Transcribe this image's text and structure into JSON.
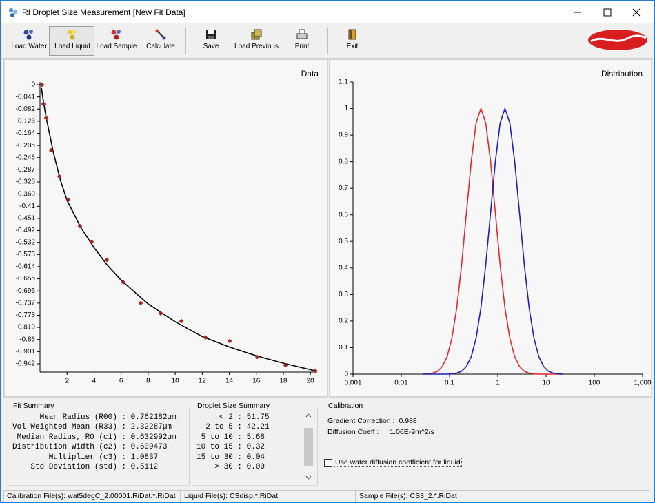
{
  "window": {
    "title": "RI Droplet Size Measurement [New Fit Data]"
  },
  "toolbar": {
    "buttons": [
      "Load Water",
      "Load Liquid",
      "Load Sample",
      "Calculate",
      "Save",
      "Load Previous",
      "Print",
      "Exit"
    ]
  },
  "chart_data": [
    {
      "type": "scatter",
      "title": "Data",
      "x": [
        0.15,
        0.26,
        0.46,
        0.82,
        1.43,
        2.09,
        2.96,
        3.82,
        4.95,
        6.17,
        7.45,
        8.93,
        10.46,
        12.24,
        14.03,
        16.07,
        18.15,
        20.35
      ],
      "values": [
        0,
        -0.065,
        -0.112,
        -0.221,
        -0.309,
        -0.388,
        -0.477,
        -0.53,
        -0.591,
        -0.667,
        -0.737,
        -0.772,
        -0.798,
        -0.853,
        -0.865,
        -0.919,
        -0.947,
        -0.965
      ],
      "color": "#b22222",
      "fit": {
        "x": [
          0.1,
          0.3,
          0.5,
          1,
          1.5,
          2,
          3,
          4,
          5,
          6,
          8,
          10,
          12,
          14,
          16,
          18,
          20.3
        ],
        "values": [
          -0.01,
          -0.07,
          -0.12,
          -0.23,
          -0.32,
          -0.39,
          -0.48,
          -0.55,
          -0.61,
          -0.66,
          -0.74,
          -0.8,
          -0.85,
          -0.885,
          -0.915,
          -0.94,
          -0.965
        ],
        "color": "#000000"
      },
      "xlim": [
        0,
        20.5
      ],
      "ylim": [
        -0.97,
        0
      ],
      "xticks": [
        2,
        4,
        6,
        8,
        10,
        12,
        14,
        16,
        18,
        20
      ],
      "yticks": [
        0,
        -0.041,
        -0.082,
        -0.123,
        -0.164,
        -0.205,
        -0.246,
        -0.287,
        -0.328,
        -0.369,
        -0.41,
        -0.451,
        -0.492,
        -0.532,
        -0.573,
        -0.614,
        -0.655,
        -0.696,
        -0.737,
        -0.778,
        -0.819,
        -0.86,
        -0.901,
        -0.942
      ]
    },
    {
      "type": "line",
      "title": "Distribution",
      "xscale": "log",
      "x": [
        0.0282,
        0.0355,
        0.0447,
        0.0562,
        0.0708,
        0.0891,
        0.112,
        0.141,
        0.178,
        0.224,
        0.282,
        0.355,
        0.447,
        0.562,
        0.708,
        0.891,
        1.12,
        1.41,
        1.78,
        2.24,
        2.82,
        3.55,
        4.47,
        5.62,
        7.08,
        8.91,
        11.2,
        14.1,
        17.8,
        22.4
      ],
      "series": [
        {
          "color": "#e0282e",
          "values": [
            0,
            0.001,
            0.004,
            0.011,
            0.029,
            0.066,
            0.135,
            0.249,
            0.411,
            0.607,
            0.801,
            0.946,
            1,
            0.946,
            0.801,
            0.607,
            0.411,
            0.249,
            0.135,
            0.066,
            0.029,
            0.011,
            0.004,
            0.001,
            0,
            0,
            0,
            0,
            0,
            0
          ]
        },
        {
          "color": "#1f1fb4",
          "values": [
            0,
            0,
            0,
            0,
            0,
            0,
            0.001,
            0.004,
            0.011,
            0.029,
            0.066,
            0.135,
            0.249,
            0.411,
            0.607,
            0.801,
            0.946,
            1,
            0.946,
            0.801,
            0.607,
            0.411,
            0.249,
            0.135,
            0.066,
            0.029,
            0.011,
            0.004,
            0.001,
            0
          ]
        }
      ],
      "xlim": [
        0.001,
        1000
      ],
      "ylim": [
        0,
        1.1
      ],
      "xticks": [
        0.001,
        0.01,
        0.1,
        1,
        10,
        100,
        {
          "value": 1000,
          "label": "1,000"
        }
      ],
      "yticks": [
        0,
        0.1,
        0.2,
        0.3,
        0.4,
        0.5,
        0.6,
        0.7,
        0.8,
        0.9,
        1,
        1.1
      ]
    }
  ],
  "fit_summary": {
    "title": "Fit Summary",
    "rows": [
      "      Mean Radius (R00) : 0.762182µm",
      "Vol Weighted Mean (R33) : 2.32287µm",
      " Median Radius, R0 (c1) : 0.632992µm",
      "Distribution Width (c2) : 0.609473",
      "        Multiplier (c3) : 1.0837",
      "    Std Deviation (std) : 0.5112"
    ]
  },
  "droplet_summary": {
    "title": "Droplet Size Summary",
    "rows": [
      "     < 2 : 51.75",
      "  2 to 5 : 42.21",
      " 5 to 10 : 5.68",
      "10 to 15 : 0.32",
      "15 to 30 : 0.04",
      "    > 30 : 0.00"
    ]
  },
  "calibration": {
    "title": "Calibration",
    "rows": [
      {
        "label": "Gradient Correction :",
        "value": "0.988"
      },
      {
        "label": "Diffusion Coeff :",
        "value": "1.06E-9m^2/s"
      }
    ]
  },
  "checkbox": {
    "label": "Use water diffusion coefficient for liquid",
    "checked": false
  },
  "status_bar": [
    "Calibration File(s): wat5degC_2.00001.RiDat.*.RiDat",
    "Liquid File(s): CSdisp.*.RiDat",
    "Sample File(s): CS3_2.*.RiDat"
  ]
}
